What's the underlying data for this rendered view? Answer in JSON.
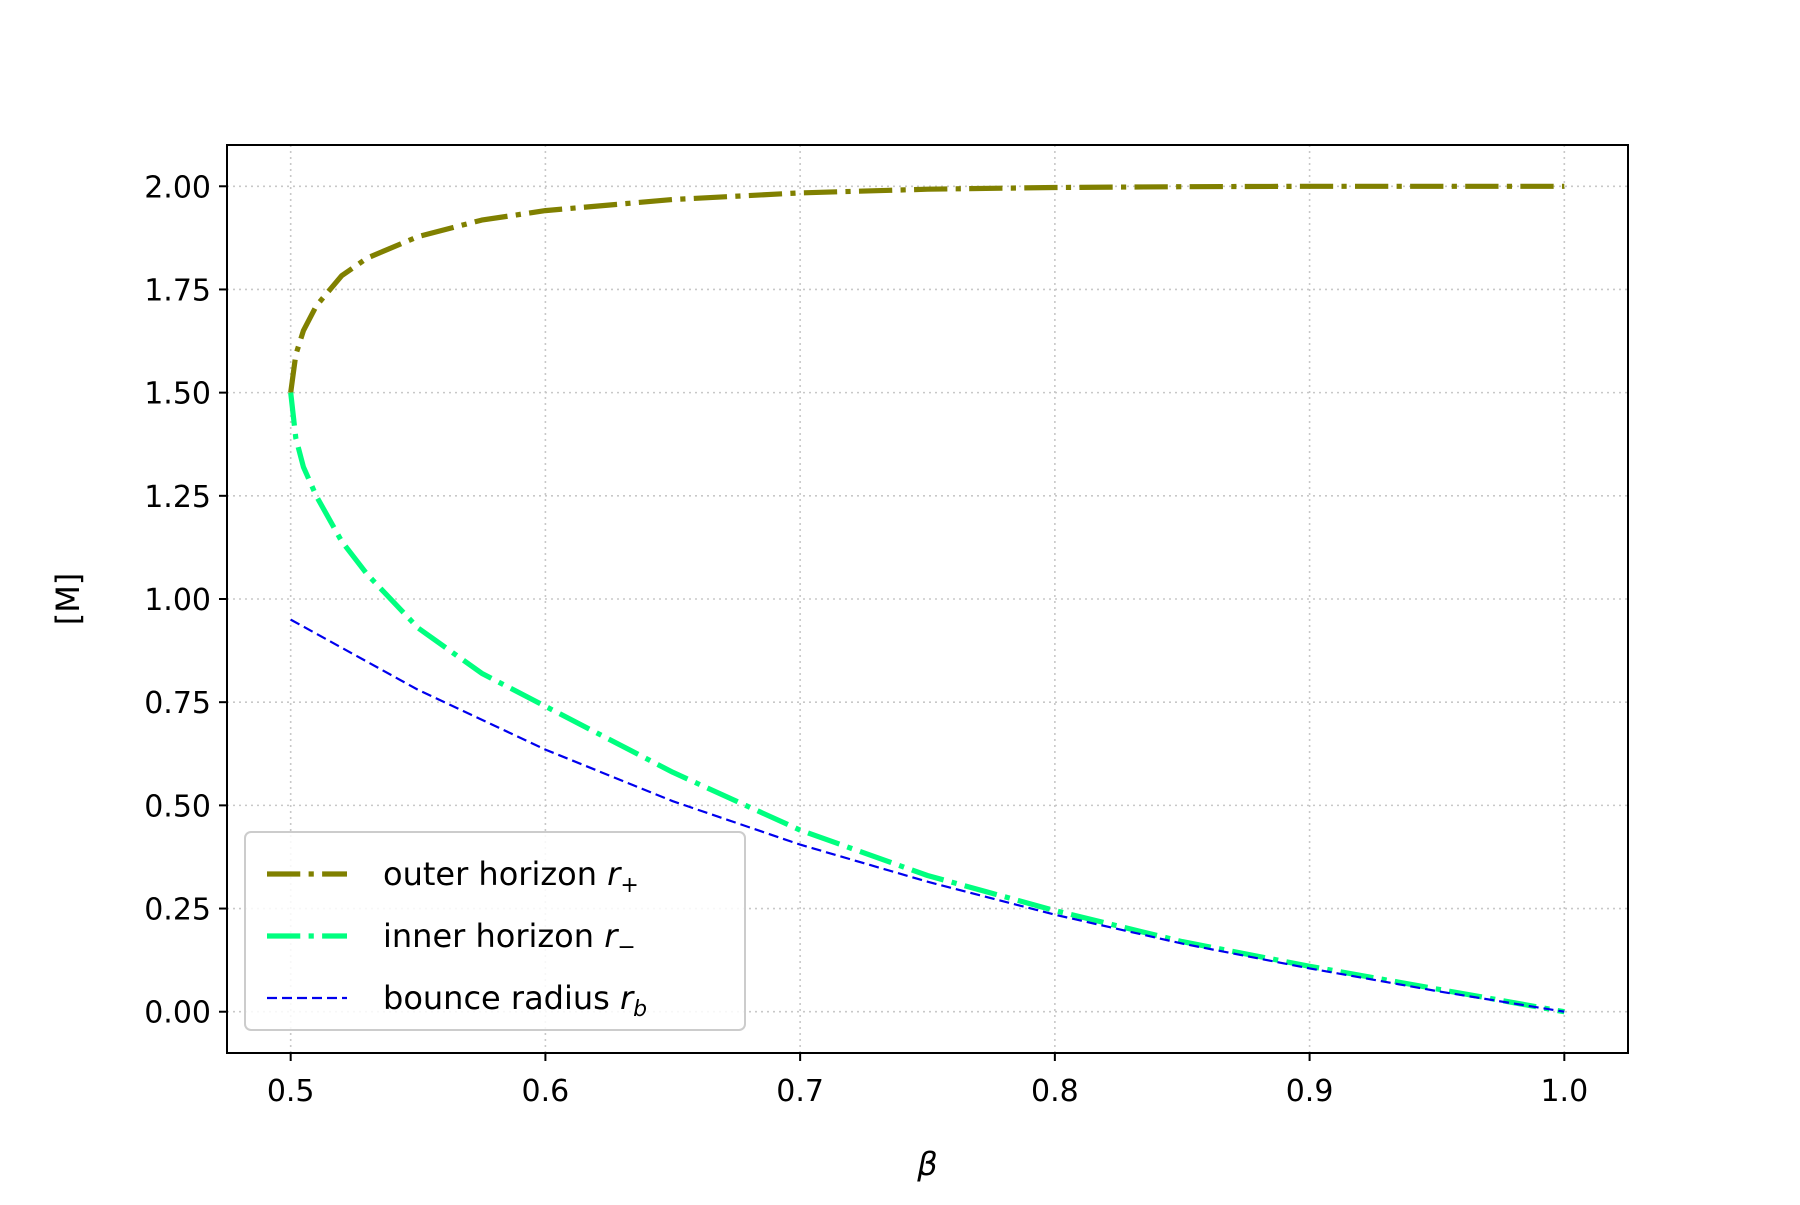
{
  "chart_data": {
    "type": "line",
    "title": "",
    "xlabel": "β",
    "ylabel": "[M]",
    "xlim": [
      0.475,
      1.025
    ],
    "ylim": [
      -0.1,
      2.1
    ],
    "xticks": [
      0.5,
      0.6,
      0.7,
      0.8,
      0.9,
      1.0
    ],
    "xtick_labels": [
      "0.5",
      "0.6",
      "0.7",
      "0.8",
      "0.9",
      "1.0"
    ],
    "yticks": [
      0.0,
      0.25,
      0.5,
      0.75,
      1.0,
      1.25,
      1.5,
      1.75,
      2.0
    ],
    "ytick_labels": [
      "0.00",
      "0.25",
      "0.50",
      "0.75",
      "1.00",
      "1.25",
      "1.50",
      "1.75",
      "2.00"
    ],
    "grid": true,
    "legend_position": "lower-left",
    "series": [
      {
        "name": "outer horizon r",
        "subscript": "+",
        "color": "#808000",
        "style": "dashdot",
        "x": [
          0.5,
          0.502,
          0.505,
          0.51,
          0.52,
          0.53,
          0.55,
          0.575,
          0.6,
          0.65,
          0.7,
          0.75,
          0.8,
          0.85,
          0.9,
          0.95,
          1.0
        ],
        "y": [
          1.5,
          1.592,
          1.65,
          1.71,
          1.783,
          1.826,
          1.878,
          1.918,
          1.941,
          1.968,
          1.984,
          1.993,
          1.997,
          1.999,
          2.0,
          2.0,
          2.0
        ]
      },
      {
        "name": "inner horizon r",
        "subscript": "−",
        "color": "#00ff7f",
        "style": "dashdot",
        "x": [
          0.5,
          0.502,
          0.505,
          0.51,
          0.52,
          0.53,
          0.55,
          0.575,
          0.6,
          0.65,
          0.7,
          0.75,
          0.8,
          0.85,
          0.9,
          0.95,
          1.0
        ],
        "y": [
          1.5,
          1.39,
          1.32,
          1.25,
          1.14,
          1.06,
          0.93,
          0.82,
          0.74,
          0.58,
          0.44,
          0.33,
          0.245,
          0.17,
          0.11,
          0.055,
          0.0
        ]
      },
      {
        "name": "bounce radius r",
        "subscript": "b",
        "color": "#0000ee",
        "style": "dashed",
        "x": [
          0.5,
          0.55,
          0.6,
          0.65,
          0.7,
          0.75,
          0.8,
          0.85,
          0.9,
          0.95,
          1.0
        ],
        "y": [
          0.95,
          0.78,
          0.635,
          0.51,
          0.405,
          0.315,
          0.235,
          0.165,
          0.105,
          0.05,
          0.0
        ]
      }
    ]
  }
}
